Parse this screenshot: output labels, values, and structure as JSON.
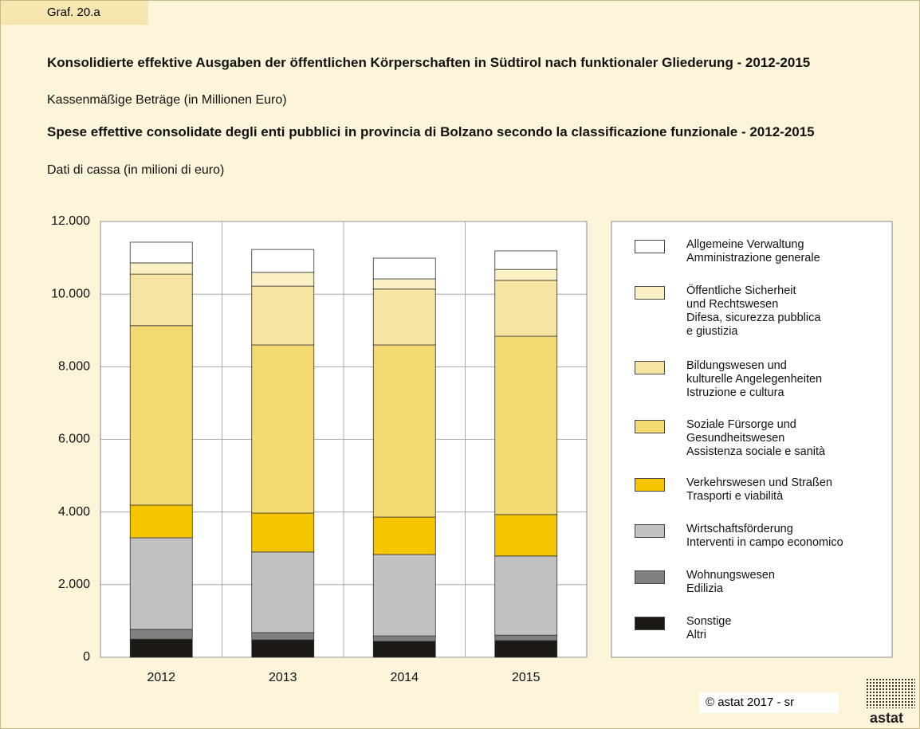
{
  "tab": "Graf. 20.a",
  "chart_data": {
    "type": "stacked_bar",
    "title": "Konsolidierte effektive Ausgaben der öffentlichen Körperschaften in Südtirol nach funktionaler Gliederung - 2012-2015",
    "subtitle": "Kassenmäßige Beträge (in Millionen Euro)",
    "title2": "Spese effettive consolidate degli enti pubblici in provincia di Bolzano secondo la classificazione funzionale - 2012-2015",
    "subtitle2": "Dati di cassa (in milioni di euro)",
    "categories": [
      "2012",
      "2013",
      "2014",
      "2015"
    ],
    "ylim": [
      0,
      12000
    ],
    "yticks": [
      0,
      {
        "value": 2000,
        "label": "2.000"
      },
      {
        "value": 4000,
        "label": "4.000"
      },
      {
        "value": 6000,
        "label": "6.000"
      },
      {
        "value": 8000,
        "label": "8.000"
      },
      {
        "value": 10000,
        "label": "10.000"
      },
      {
        "value": 12000,
        "label": "12.000"
      }
    ],
    "grid": true,
    "series": [
      {
        "name": "Allgemeine Verwaltung\nAmministrazione generale",
        "color": "#ffffff",
        "values": [
          570,
          630,
          570,
          510
        ]
      },
      {
        "name": "Öffentliche Sicherheit\nund Rechtswesen\nDifesa, sicurezza pubblica\ne giustizia",
        "color": "#fbf1c4",
        "values": [
          310,
          380,
          280,
          300
        ]
      },
      {
        "name": "Bildungswesen und\nkulturelle Angelegenheiten\nIstruzione e cultura",
        "color": "#f6e4a2",
        "values": [
          1420,
          1620,
          1540,
          1540
        ]
      },
      {
        "name": "Soziale Fürsorge und\nGesundheitswesen\nAssistenza sociale e sanità",
        "color": "#f3da72",
        "values": [
          4940,
          4630,
          4740,
          4910
        ]
      },
      {
        "name": "Verkehrswesen und Straßen\nTrasporti e viabilità",
        "color": "#f5c500",
        "values": [
          900,
          1070,
          1030,
          1140
        ]
      },
      {
        "name": "Wirtschaftsförderung\nInterventi in campo economico",
        "color": "#c2c2c2",
        "values": [
          2520,
          2220,
          2240,
          2180
        ]
      },
      {
        "name": "Wohnungswesen\nEdilizia",
        "color": "#808080",
        "values": [
          270,
          200,
          150,
          150
        ]
      },
      {
        "name": "Sonstige\nAltri",
        "color": "#1c1814",
        "values": [
          500,
          480,
          440,
          460
        ]
      }
    ]
  },
  "footer": "© astat 2017 - sr",
  "logo": "astat"
}
